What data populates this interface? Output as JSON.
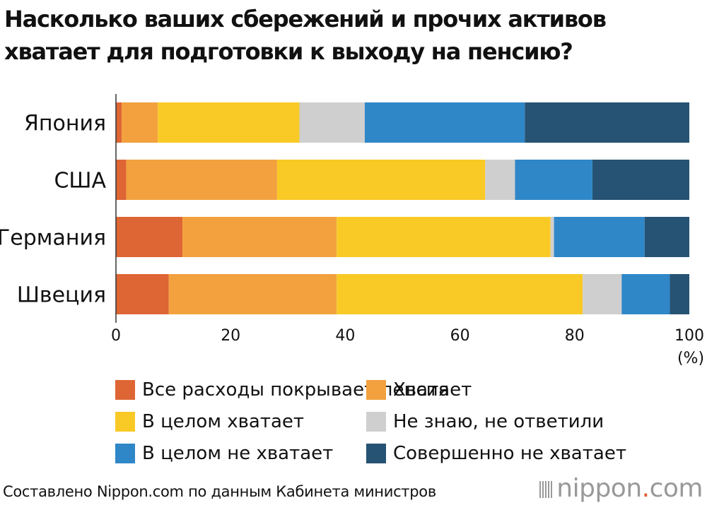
{
  "title_lines": [
    "Насколько ваших сбережений и прочих активов",
    "хватает для подготовки к выходу на пенсию?"
  ],
  "footer": "Составлено Nippon.com по данным Кабинета министров",
  "logo": {
    "name": "nippon",
    "dot": ".",
    "suffix": "com"
  },
  "chart_data": {
    "type": "bar",
    "orientation": "horizontal",
    "stacked": true,
    "title": "Насколько ваших сбережений и прочих активов хватает для подготовки к выходу на пенсию?",
    "categories": [
      "Япония",
      "США",
      "Германия",
      "Швеция"
    ],
    "xlim": [
      0,
      100
    ],
    "xticks": [
      0,
      20,
      40,
      60,
      80,
      100
    ],
    "xunit": "(%)",
    "grid": false,
    "legend_position": "bottom",
    "series": [
      {
        "name": "Все расходы покрывает пенсия",
        "color": "#de6534",
        "values": [
          1.0,
          1.8,
          11.6,
          9.2
        ]
      },
      {
        "name": "Хватает",
        "color": "#f2a13e",
        "values": [
          6.3,
          26.3,
          26.9,
          29.3
        ]
      },
      {
        "name": "В целом хватает",
        "color": "#f9c926",
        "values": [
          24.7,
          36.3,
          37.3,
          42.9
        ]
      },
      {
        "name": "Не знаю, не ответили",
        "color": "#cfcfcf",
        "values": [
          11.4,
          5.2,
          0.6,
          6.8
        ]
      },
      {
        "name": "В целом не хватает",
        "color": "#2f87c8",
        "values": [
          27.9,
          13.5,
          15.8,
          8.4
        ]
      },
      {
        "name": "Совершенно не хватает",
        "color": "#265373",
        "values": [
          28.7,
          16.9,
          7.8,
          3.4
        ]
      }
    ]
  }
}
